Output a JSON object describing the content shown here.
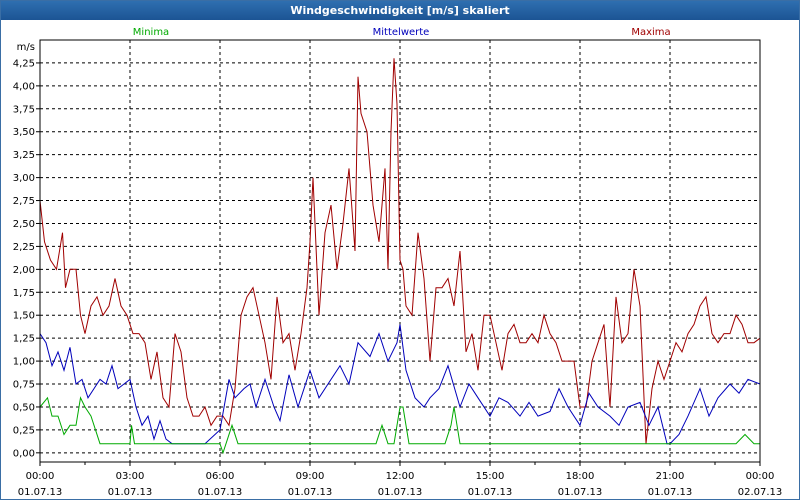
{
  "window": {
    "title": "Windgeschwindigkeit [m/s] skaliert"
  },
  "colors": {
    "title_bar": "#1f5a9c",
    "minima": "#00aa00",
    "mittelwerte": "#0000bb",
    "maxima": "#a00000",
    "grid": "#000000",
    "plot_background": "#ffffff"
  },
  "chart_data": {
    "type": "line",
    "title": "Windgeschwindigkeit [m/s] skaliert",
    "ylabel": "m/s",
    "xlabel": "",
    "ylim": [
      -0.1,
      4.5
    ],
    "yticks": [
      "0,00",
      "0,25",
      "0,50",
      "0,75",
      "1,00",
      "1,25",
      "1,50",
      "1,75",
      "2,00",
      "2,25",
      "2,50",
      "2,75",
      "3,00",
      "3,25",
      "3,50",
      "3,75",
      "4,00",
      "4,25"
    ],
    "x_unit": "hours since 01.07.13 00:00",
    "xlim": [
      0,
      24
    ],
    "xticks": [
      {
        "time": "00:00",
        "date": "01.07.13"
      },
      {
        "time": "03:00",
        "date": "01.07.13"
      },
      {
        "time": "06:00",
        "date": "01.07.13"
      },
      {
        "time": "09:00",
        "date": "01.07.13"
      },
      {
        "time": "12:00",
        "date": "01.07.13"
      },
      {
        "time": "15:00",
        "date": "01.07.13"
      },
      {
        "time": "18:00",
        "date": "01.07.13"
      },
      {
        "time": "21:00",
        "date": "01.07.13"
      },
      {
        "time": "00:00",
        "date": "02.07.13"
      }
    ],
    "grid": true,
    "legend_placement": "top",
    "series": [
      {
        "name": "Minima",
        "color": "#00aa00",
        "x": [
          0.0,
          0.25,
          0.4,
          0.6,
          0.8,
          1.0,
          1.2,
          1.35,
          1.5,
          1.7,
          2.0,
          2.5,
          2.8,
          3.0,
          3.05,
          3.15,
          3.3,
          4.0,
          4.5,
          5.0,
          5.5,
          6.0,
          6.1,
          6.2,
          6.4,
          6.6,
          7.0,
          7.5,
          8.0,
          9.0,
          10.0,
          10.5,
          11.0,
          11.2,
          11.4,
          11.6,
          11.8,
          11.9,
          12.0,
          12.1,
          12.3,
          12.5,
          13.0,
          13.5,
          13.7,
          13.8,
          13.9,
          14.0,
          14.5,
          15.0,
          16.0,
          17.0,
          17.5,
          18.0,
          18.5,
          19.0,
          20.0,
          21.0,
          21.5,
          22.0,
          22.5,
          22.8,
          23.0,
          23.2,
          23.5,
          23.8,
          24.0
        ],
        "y": [
          0.5,
          0.6,
          0.4,
          0.4,
          0.2,
          0.3,
          0.3,
          0.6,
          0.5,
          0.4,
          0.1,
          0.1,
          0.1,
          0.1,
          0.3,
          0.1,
          0.1,
          0.1,
          0.1,
          0.1,
          0.1,
          0.1,
          0.0,
          0.1,
          0.3,
          0.1,
          0.1,
          0.1,
          0.1,
          0.1,
          0.1,
          0.1,
          0.1,
          0.1,
          0.3,
          0.1,
          0.1,
          0.3,
          0.5,
          0.5,
          0.1,
          0.1,
          0.1,
          0.1,
          0.3,
          0.5,
          0.3,
          0.1,
          0.1,
          0.1,
          0.1,
          0.1,
          0.1,
          0.1,
          0.1,
          0.1,
          0.1,
          0.1,
          0.1,
          0.1,
          0.1,
          0.1,
          0.1,
          0.1,
          0.2,
          0.1,
          0.1
        ]
      },
      {
        "name": "Mittelwerte",
        "color": "#0000bb",
        "x": [
          0.0,
          0.2,
          0.4,
          0.6,
          0.8,
          1.0,
          1.2,
          1.4,
          1.6,
          1.8,
          2.0,
          2.2,
          2.4,
          2.6,
          2.8,
          3.0,
          3.2,
          3.4,
          3.6,
          3.8,
          4.0,
          4.2,
          4.4,
          4.6,
          4.8,
          5.0,
          5.2,
          5.5,
          6.0,
          6.3,
          6.5,
          6.8,
          7.0,
          7.2,
          7.5,
          7.8,
          8.0,
          8.3,
          8.6,
          9.0,
          9.3,
          9.6,
          10.0,
          10.3,
          10.6,
          11.0,
          11.3,
          11.6,
          11.9,
          12.0,
          12.2,
          12.5,
          12.8,
          13.0,
          13.3,
          13.6,
          14.0,
          14.3,
          14.6,
          15.0,
          15.3,
          15.6,
          16.0,
          16.3,
          16.6,
          17.0,
          17.3,
          17.6,
          18.0,
          18.3,
          18.6,
          19.0,
          19.3,
          19.6,
          20.0,
          20.3,
          20.6,
          20.9,
          21.0,
          21.3,
          21.6,
          22.0,
          22.3,
          22.6,
          23.0,
          23.3,
          23.6,
          24.0
        ],
        "y": [
          1.3,
          1.2,
          0.95,
          1.1,
          0.9,
          1.15,
          0.75,
          0.8,
          0.6,
          0.7,
          0.8,
          0.75,
          0.95,
          0.7,
          0.75,
          0.8,
          0.5,
          0.3,
          0.4,
          0.15,
          0.35,
          0.15,
          0.1,
          0.1,
          0.1,
          0.1,
          0.1,
          0.1,
          0.25,
          0.8,
          0.6,
          0.7,
          0.75,
          0.5,
          0.8,
          0.5,
          0.35,
          0.85,
          0.5,
          0.9,
          0.6,
          0.75,
          0.95,
          0.75,
          1.2,
          1.05,
          1.3,
          1.0,
          1.2,
          1.4,
          0.9,
          0.6,
          0.5,
          0.6,
          0.7,
          0.95,
          0.5,
          0.75,
          0.6,
          0.4,
          0.6,
          0.55,
          0.4,
          0.55,
          0.4,
          0.45,
          0.7,
          0.5,
          0.3,
          0.65,
          0.5,
          0.4,
          0.3,
          0.5,
          0.55,
          0.3,
          0.5,
          0.1,
          0.1,
          0.2,
          0.4,
          0.7,
          0.4,
          0.6,
          0.75,
          0.65,
          0.8,
          0.75
        ]
      },
      {
        "name": "Maxima",
        "color": "#a00000",
        "x": [
          0.0,
          0.15,
          0.35,
          0.55,
          0.75,
          0.85,
          1.0,
          1.2,
          1.35,
          1.5,
          1.7,
          1.9,
          2.1,
          2.3,
          2.5,
          2.7,
          2.9,
          3.1,
          3.3,
          3.5,
          3.7,
          3.9,
          4.1,
          4.3,
          4.5,
          4.7,
          4.9,
          5.1,
          5.3,
          5.5,
          5.7,
          5.9,
          6.1,
          6.3,
          6.5,
          6.7,
          6.9,
          7.1,
          7.3,
          7.5,
          7.7,
          7.9,
          8.1,
          8.3,
          8.5,
          8.7,
          8.9,
          9.0,
          9.1,
          9.3,
          9.5,
          9.7,
          9.9,
          10.1,
          10.3,
          10.5,
          10.6,
          10.7,
          10.9,
          11.1,
          11.3,
          11.5,
          11.6,
          11.7,
          11.8,
          11.9,
          12.0,
          12.1,
          12.2,
          12.4,
          12.6,
          12.8,
          13.0,
          13.2,
          13.4,
          13.6,
          13.8,
          14.0,
          14.2,
          14.4,
          14.6,
          14.8,
          15.0,
          15.2,
          15.4,
          15.6,
          15.8,
          16.0,
          16.2,
          16.4,
          16.6,
          16.8,
          17.0,
          17.2,
          17.4,
          17.6,
          17.8,
          18.0,
          18.2,
          18.4,
          18.6,
          18.8,
          19.0,
          19.2,
          19.4,
          19.6,
          19.8,
          20.0,
          20.2,
          20.4,
          20.6,
          20.8,
          21.0,
          21.2,
          21.4,
          21.6,
          21.8,
          22.0,
          22.2,
          22.4,
          22.6,
          22.8,
          23.0,
          23.2,
          23.4,
          23.6,
          23.8,
          24.0
        ],
        "y": [
          2.75,
          2.3,
          2.1,
          2.0,
          2.4,
          1.8,
          2.0,
          2.0,
          1.5,
          1.3,
          1.6,
          1.7,
          1.5,
          1.6,
          1.9,
          1.6,
          1.5,
          1.3,
          1.3,
          1.2,
          0.8,
          1.1,
          0.6,
          0.5,
          1.3,
          1.1,
          0.6,
          0.4,
          0.4,
          0.5,
          0.3,
          0.4,
          0.4,
          0.3,
          0.7,
          1.5,
          1.7,
          1.8,
          1.5,
          1.2,
          0.8,
          1.7,
          1.2,
          1.3,
          0.9,
          1.3,
          1.8,
          2.3,
          3.0,
          1.5,
          2.4,
          2.7,
          2.0,
          2.5,
          3.1,
          2.2,
          4.1,
          3.7,
          3.5,
          2.7,
          2.3,
          3.1,
          2.0,
          3.5,
          4.3,
          3.8,
          2.1,
          2.0,
          1.6,
          1.5,
          2.4,
          1.9,
          1.0,
          1.8,
          1.8,
          1.9,
          1.6,
          2.2,
          1.1,
          1.3,
          0.9,
          1.5,
          1.5,
          1.2,
          0.9,
          1.3,
          1.4,
          1.2,
          1.2,
          1.3,
          1.2,
          1.5,
          1.3,
          1.2,
          1.0,
          1.0,
          1.0,
          0.5,
          0.5,
          1.0,
          1.2,
          1.4,
          0.5,
          1.7,
          1.2,
          1.3,
          2.0,
          1.6,
          0.1,
          0.7,
          1.0,
          0.8,
          1.0,
          1.2,
          1.1,
          1.3,
          1.4,
          1.6,
          1.7,
          1.3,
          1.2,
          1.3,
          1.3,
          1.5,
          1.4,
          1.2,
          1.2,
          1.25
        ]
      }
    ]
  }
}
